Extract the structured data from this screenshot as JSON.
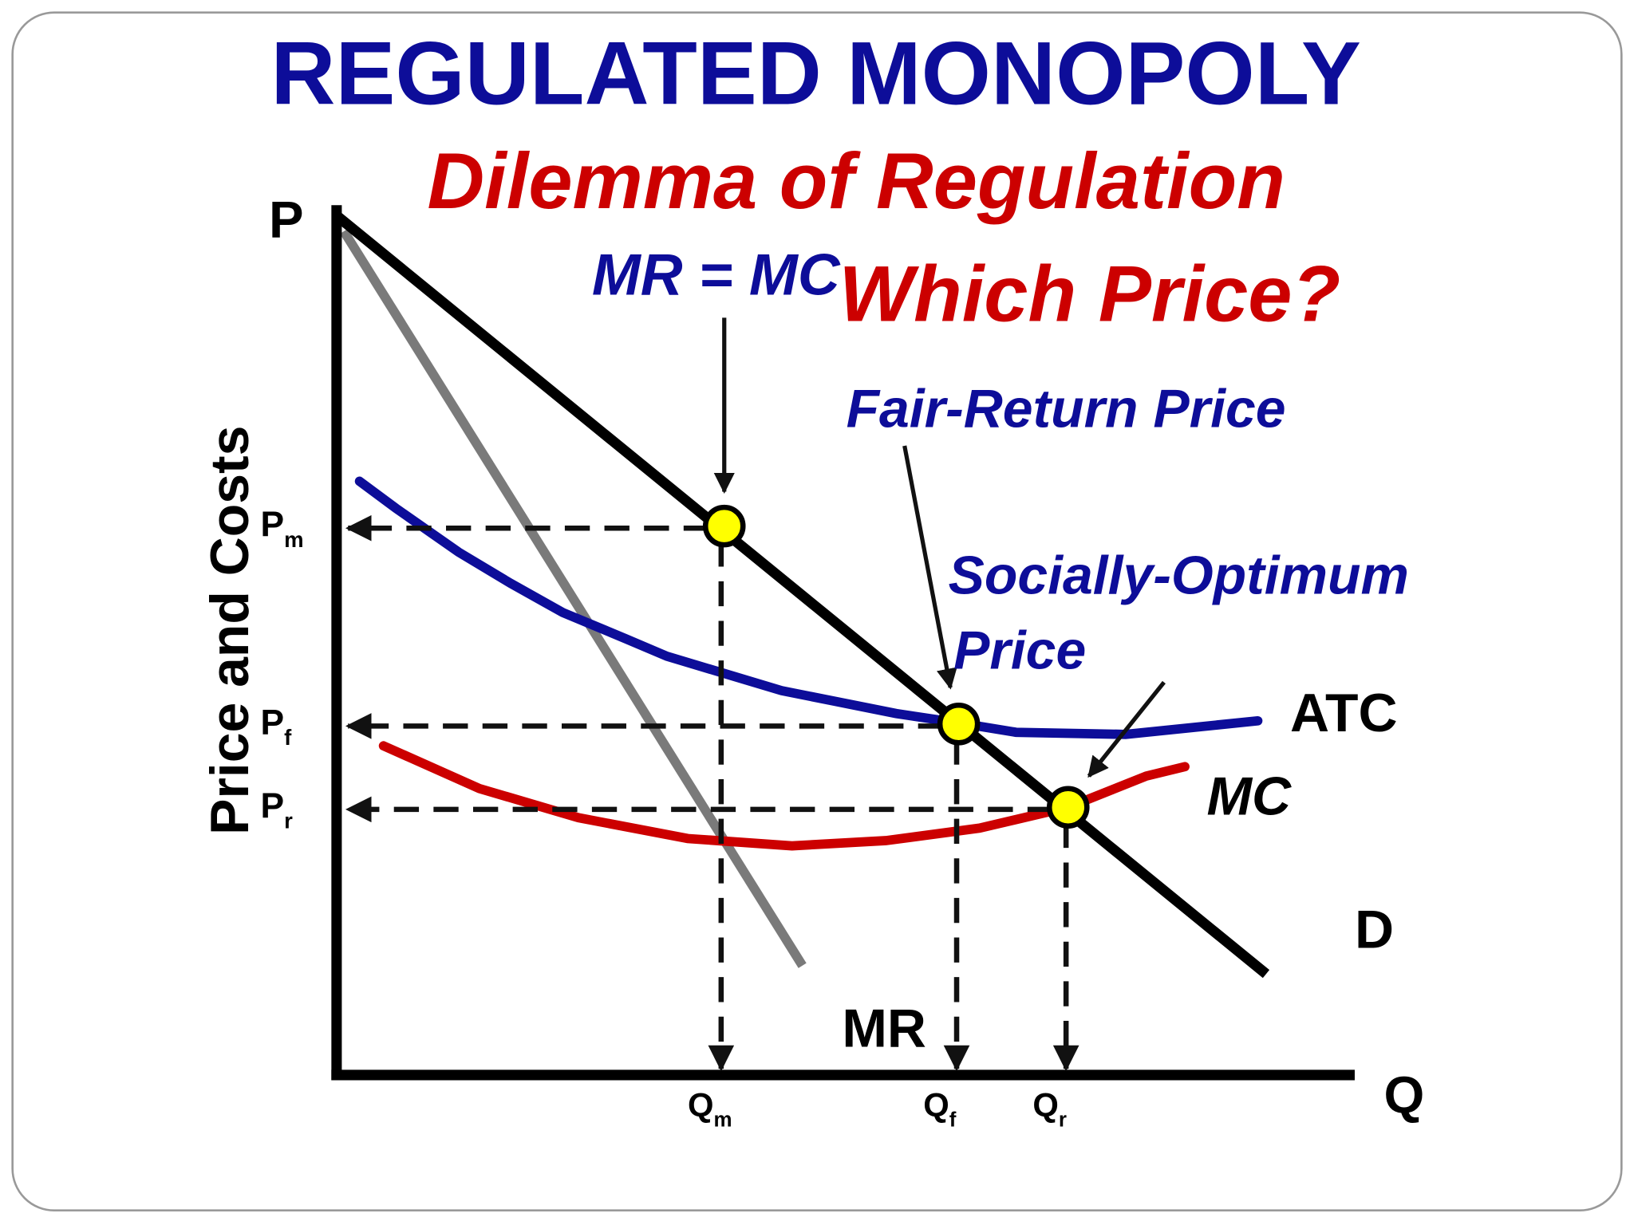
{
  "header": {
    "title": "REGULATED MONOPOLY",
    "subtitle": [
      "Dilemma of Regulation",
      "Which Price?"
    ]
  },
  "axes": {
    "y_label": "Price and Costs",
    "y_symbol": "P",
    "x_symbol": "Q"
  },
  "annotations": {
    "mr_mc": "MR = MC",
    "fair_return": "Fair-Return Price",
    "socially_optimum": [
      "Socially-Optimum",
      "Price"
    ]
  },
  "curves": {
    "atc": "ATC",
    "mc": "MC",
    "demand": "D",
    "mr": "MR"
  },
  "price_levels": [
    {
      "main": "P",
      "sub": "m"
    },
    {
      "main": "P",
      "sub": "f"
    },
    {
      "main": "P",
      "sub": "r"
    }
  ],
  "quantity_levels": [
    {
      "main": "Q",
      "sub": "m"
    },
    {
      "main": "Q",
      "sub": "f"
    },
    {
      "main": "Q",
      "sub": "r"
    }
  ]
}
